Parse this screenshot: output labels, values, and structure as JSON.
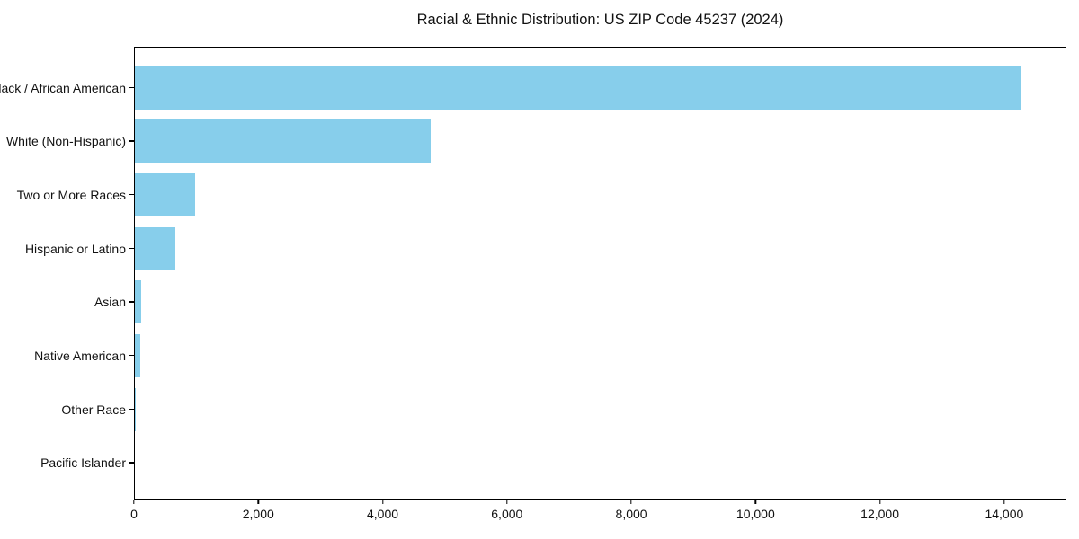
{
  "title": "Racial & Ethnic Distribution: US ZIP Code 45237 (2024)",
  "chart_data": {
    "type": "bar",
    "orientation": "horizontal",
    "title": "Racial & Ethnic Distribution: US ZIP Code 45237 (2024)",
    "xlabel": "",
    "ylabel": "",
    "categories": [
      "Black / African American",
      "White (Non-Hispanic)",
      "Two or More Races",
      "Hispanic or Latino",
      "Asian",
      "Native American",
      "Other Race",
      "Pacific Islander"
    ],
    "values": [
      14280,
      4770,
      970,
      655,
      100,
      90,
      15,
      0
    ],
    "xlim": [
      0,
      15000
    ],
    "xticks": [
      0,
      2000,
      4000,
      6000,
      8000,
      10000,
      12000,
      14000
    ],
    "xtick_labels": [
      "0",
      "2,000",
      "4,000",
      "6,000",
      "8,000",
      "10,000",
      "12,000",
      "14,000"
    ],
    "bar_color": "#87CEEB",
    "axis_color": "#000000",
    "background_color": "#ffffff",
    "grid": false,
    "legend": null
  }
}
